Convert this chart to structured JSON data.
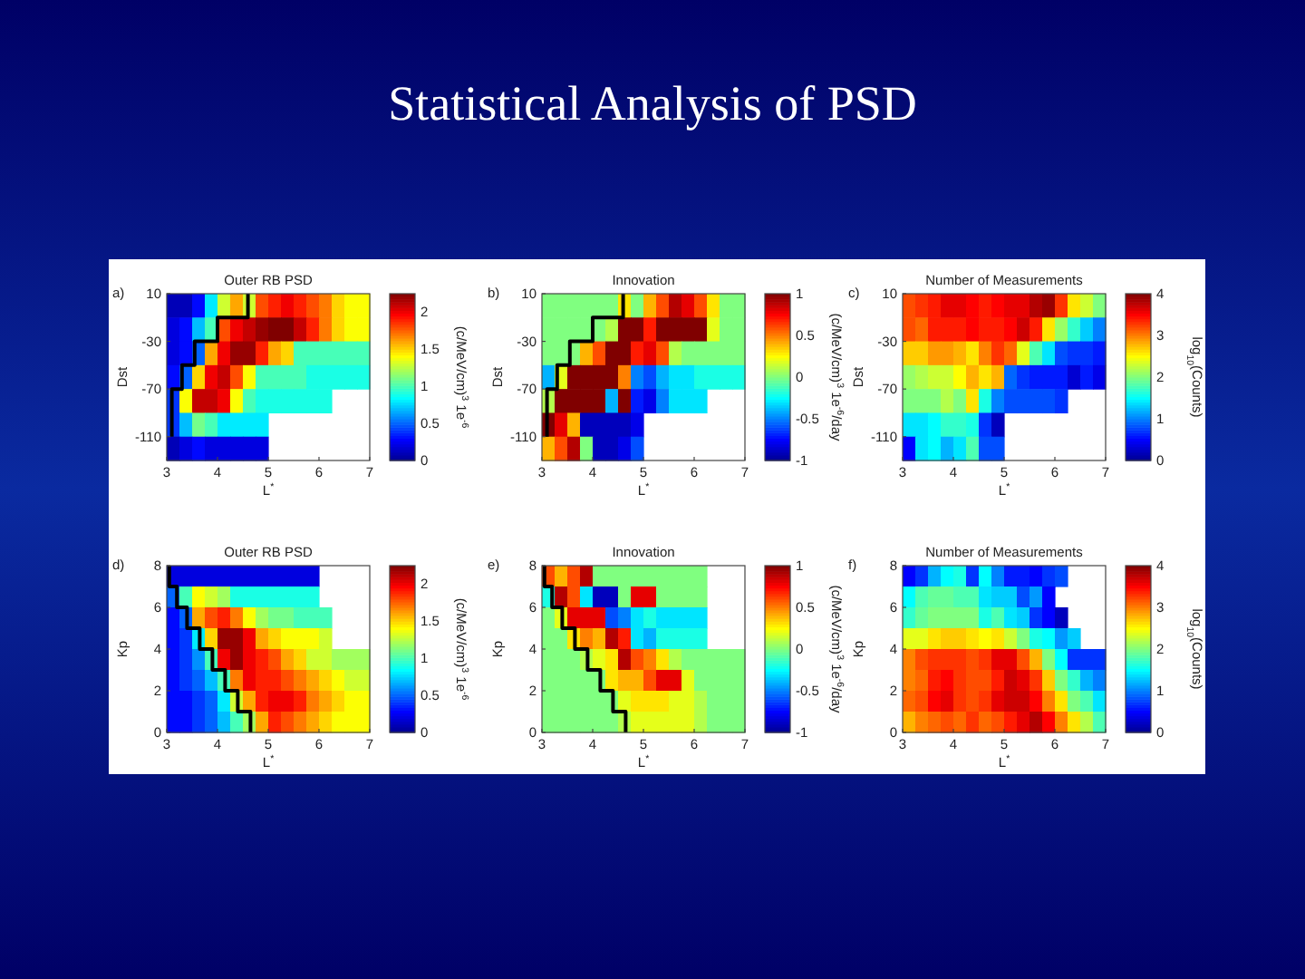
{
  "chart_data": [
    {
      "type": "other",
      "title": "Statistical Analysis of PSD"
    },
    {
      "type": "heatmap",
      "title": "Outer RB PSD",
      "annotations": [
        "a)"
      ],
      "xlabel": "L$^{*}$",
      "ylabel": "Dst",
      "clabel": "(c/MeV/cm)$^{3}$ 1e$^{-6}$",
      "xlim": [
        3,
        7
      ],
      "xticks": [
        3,
        4,
        5,
        6,
        7
      ],
      "ylim": [
        -130,
        10
      ],
      "yticks": [
        10,
        -30,
        -70,
        -110
      ],
      "clim": [
        0,
        2.25
      ],
      "cticks": [
        0,
        0.5,
        1,
        1.5,
        2
      ],
      "cells": [
        [
          0.1,
          0.1,
          0.3,
          0.8,
          1.3,
          1.6,
          1.3,
          1.8,
          1.9,
          2.0,
          1.9,
          1.8,
          1.7,
          1.5,
          1.4,
          1.4
        ],
        [
          0.2,
          0.3,
          0.7,
          1.0,
          1.8,
          2.0,
          2.1,
          2.2,
          2.25,
          2.25,
          2.1,
          1.9,
          1.7,
          1.5,
          1.4,
          1.4
        ],
        [
          0.2,
          0.3,
          0.5,
          1.6,
          2.0,
          2.2,
          2.2,
          1.9,
          1.6,
          1.5,
          1.0,
          1.0,
          1.0,
          1.0,
          1.0,
          1.0
        ],
        [
          0.3,
          0.5,
          1.5,
          2.0,
          2.1,
          1.8,
          1.4,
          1.0,
          1.0,
          1.0,
          1.0,
          0.9,
          0.9,
          0.9,
          0.9,
          0.9
        ],
        [
          0.4,
          1.4,
          2.1,
          2.1,
          2.0,
          1.4,
          1.0,
          0.9,
          0.9,
          0.9,
          0.9,
          0.9,
          0.9,
          null,
          null,
          null
        ],
        [
          0.4,
          0.7,
          1.1,
          1.0,
          0.8,
          0.8,
          0.8,
          0.8,
          null,
          null,
          null,
          null,
          null,
          null,
          null,
          null
        ],
        [
          0.1,
          0.2,
          0.3,
          0.2,
          0.2,
          0.2,
          0.2,
          0.2,
          null,
          null,
          null,
          null,
          null,
          null,
          null,
          null
        ]
      ],
      "series": [
        {
          "type": "line",
          "color": "#000000",
          "x": [
            4.6,
            4.6,
            4.0,
            4.0,
            3.55,
            3.55,
            3.3,
            3.3,
            3.1,
            3.1
          ],
          "values": [
            10,
            -10,
            -10,
            -30,
            -30,
            -50,
            -50,
            -70,
            -70,
            -110
          ]
        }
      ]
    },
    {
      "type": "heatmap",
      "title": "Innovation",
      "annotations": [
        "b)"
      ],
      "xlabel": "L$^{*}$",
      "ylabel": "Dst",
      "clabel": "(c/MeV/cm)$^{3}$ 1e$^{-6}$/day",
      "xlim": [
        3,
        7
      ],
      "xticks": [
        3,
        4,
        5,
        6,
        7
      ],
      "ylim": [
        -130,
        10
      ],
      "yticks": [
        10,
        -30,
        -70,
        -110
      ],
      "clim": [
        -1,
        1
      ],
      "cticks": [
        -1,
        -0.5,
        0,
        0.5,
        1
      ],
      "cells": [
        [
          0,
          0,
          0,
          0,
          0,
          0,
          0.3,
          0,
          0.4,
          0.6,
          0.9,
          0.8,
          0.6,
          0.3,
          0,
          0
        ],
        [
          0,
          0,
          0,
          0,
          0,
          0.1,
          1,
          1,
          0.7,
          1,
          1,
          1,
          1,
          0.2,
          0,
          0
        ],
        [
          0,
          0,
          0,
          0.4,
          0.6,
          1,
          1,
          0.7,
          0.8,
          0.6,
          0.1,
          0,
          0,
          0,
          0,
          0
        ],
        [
          -0.4,
          0.2,
          1,
          1,
          1,
          1,
          0.5,
          -0.5,
          -0.6,
          -0.4,
          -0.3,
          -0.3,
          -0.2,
          -0.2,
          -0.2,
          -0.2
        ],
        [
          0.1,
          1,
          1,
          1,
          1,
          -0.4,
          1,
          -0.7,
          -0.8,
          -0.5,
          -0.3,
          -0.3,
          -0.3,
          null,
          null,
          null
        ],
        [
          1,
          0.8,
          0.4,
          -0.9,
          -0.9,
          -0.9,
          -0.9,
          -0.8,
          null,
          null,
          null,
          null,
          null,
          null,
          null,
          null
        ],
        [
          0.4,
          0.6,
          0.9,
          0,
          -0.9,
          -0.9,
          -0.8,
          -0.6,
          null,
          null,
          null,
          null,
          null,
          null,
          null,
          null
        ]
      ],
      "series": [
        {
          "type": "line",
          "color": "#000000",
          "x": [
            4.6,
            4.6,
            4.0,
            4.0,
            3.55,
            3.55,
            3.3,
            3.3,
            3.1,
            3.1
          ],
          "values": [
            10,
            -10,
            -10,
            -30,
            -30,
            -50,
            -50,
            -70,
            -70,
            -110
          ]
        }
      ]
    },
    {
      "type": "heatmap",
      "title": "Number of Measurements",
      "annotations": [
        "c)"
      ],
      "xlabel": "L$^{*}$",
      "ylabel": "Dst",
      "clabel": "log$_{10}$(Counts)",
      "xlim": [
        3,
        7
      ],
      "xticks": [
        3,
        4,
        5,
        6,
        7
      ],
      "ylim": [
        -130,
        10
      ],
      "yticks": [
        10,
        -30,
        -70,
        -110
      ],
      "clim": [
        0,
        4
      ],
      "cticks": [
        0,
        1,
        2,
        3,
        4
      ],
      "cells": [
        [
          3.2,
          3.3,
          3.4,
          3.6,
          3.6,
          3.5,
          3.4,
          3.5,
          3.6,
          3.6,
          3.8,
          3.9,
          3.3,
          2.6,
          2.3,
          2.0
        ],
        [
          3.2,
          3.1,
          3.4,
          3.4,
          3.4,
          3.5,
          3.4,
          3.4,
          3.5,
          3.7,
          3.4,
          2.6,
          2.1,
          1.7,
          1.3,
          1.0
        ],
        [
          2.7,
          2.7,
          2.9,
          2.9,
          2.8,
          2.6,
          3.0,
          3.3,
          3.1,
          2.4,
          1.8,
          1.4,
          0.8,
          0.7,
          0.7,
          0.6
        ],
        [
          2.1,
          2.2,
          2.3,
          2.3,
          2.5,
          2.8,
          2.6,
          2.8,
          0.9,
          0.7,
          0.6,
          0.6,
          0.6,
          0.3,
          0.6,
          0.4
        ],
        [
          2.0,
          2.0,
          2.0,
          2.2,
          2.0,
          2.6,
          1.6,
          1.0,
          0.8,
          0.8,
          0.8,
          0.8,
          0.7,
          null,
          null,
          null
        ],
        [
          1.4,
          1.4,
          1.5,
          1.7,
          1.7,
          1.6,
          0.7,
          0.2,
          null,
          null,
          null,
          null,
          null,
          null,
          null,
          null
        ],
        [
          0.5,
          1.4,
          1.5,
          1.2,
          1.4,
          1.8,
          0.8,
          0.8,
          null,
          null,
          null,
          null,
          null,
          null,
          null,
          null
        ]
      ]
    },
    {
      "type": "heatmap",
      "title": "Outer RB PSD",
      "annotations": [
        "d)"
      ],
      "xlabel": "L$^{*}$",
      "ylabel": "Kp",
      "clabel": "(c/MeV/cm)$^{3}$ 1e$^{-6}$",
      "xlim": [
        3,
        7
      ],
      "xticks": [
        3,
        4,
        5,
        6,
        7
      ],
      "ylim": [
        0,
        8
      ],
      "yticks": [
        0,
        2,
        4,
        6,
        8
      ],
      "clim": [
        0,
        2.25
      ],
      "cticks": [
        0,
        0.5,
        1,
        1.5,
        2
      ],
      "cells": [
        [
          0.2,
          0.2,
          0.2,
          0.2,
          0.2,
          0.2,
          0.2,
          0.2,
          0.2,
          0.2,
          0.2,
          0.2,
          null,
          null,
          null,
          null
        ],
        [
          0.5,
          1.0,
          1.4,
          1.3,
          1.2,
          0.9,
          0.9,
          0.9,
          0.9,
          0.9,
          0.9,
          0.9,
          null,
          null,
          null,
          null
        ],
        [
          0.3,
          0.5,
          1.6,
          1.8,
          1.9,
          1.7,
          1.4,
          1.2,
          1.1,
          1.1,
          1.0,
          1.0,
          1.0,
          null,
          null,
          null
        ],
        [
          0.3,
          0.4,
          0.8,
          1.5,
          2.2,
          2.2,
          2.0,
          1.6,
          1.5,
          1.4,
          1.4,
          1.4,
          1.3,
          null,
          null,
          null
        ],
        [
          0.3,
          0.4,
          0.6,
          1.0,
          2.0,
          2.2,
          2.0,
          1.9,
          1.8,
          1.6,
          1.5,
          1.3,
          1.3,
          1.2,
          1.2,
          1.2
        ],
        [
          0.3,
          0.4,
          0.5,
          0.7,
          1.0,
          1.7,
          2.0,
          1.9,
          1.9,
          1.8,
          1.7,
          1.6,
          1.5,
          1.4,
          1.3,
          1.3
        ],
        [
          0.3,
          0.3,
          0.4,
          0.5,
          0.8,
          1.3,
          1.6,
          1.9,
          2.0,
          2.0,
          1.9,
          1.7,
          1.6,
          1.5,
          1.4,
          1.4
        ],
        [
          0.3,
          0.3,
          0.4,
          0.5,
          0.7,
          1.0,
          1.2,
          1.6,
          1.9,
          1.8,
          1.7,
          1.6,
          1.5,
          1.4,
          1.4,
          1.4
        ]
      ],
      "series": [
        {
          "type": "line",
          "color": "#000000",
          "x": [
            3.05,
            3.05,
            3.2,
            3.2,
            3.4,
            3.4,
            3.65,
            3.65,
            3.9,
            3.9,
            4.15,
            4.15,
            4.4,
            4.4,
            4.65,
            4.65
          ],
          "values": [
            8,
            7,
            7,
            6,
            6,
            5,
            5,
            4,
            4,
            3,
            3,
            2,
            2,
            1,
            1,
            0
          ]
        }
      ]
    },
    {
      "type": "heatmap",
      "title": "Innovation",
      "annotations": [
        "e)"
      ],
      "xlabel": "L$^{*}$",
      "ylabel": "Kp",
      "clabel": "(c/MeV/cm)$^{3}$ 1e$^{-6}$/day",
      "xlim": [
        3,
        7
      ],
      "xticks": [
        3,
        4,
        5,
        6,
        7
      ],
      "ylim": [
        0,
        8
      ],
      "yticks": [
        0,
        2,
        4,
        6,
        8
      ],
      "clim": [
        -1,
        1
      ],
      "cticks": [
        -1,
        -0.5,
        0,
        0.5,
        1
      ],
      "cells": [
        [
          0.6,
          0.4,
          0.6,
          0.9,
          0,
          0,
          0,
          0,
          0,
          0,
          0,
          0,
          0,
          null,
          null,
          null
        ],
        [
          -0.2,
          0.9,
          0.6,
          -0.3,
          -0.9,
          -0.9,
          0,
          0.8,
          0.8,
          0,
          0,
          0,
          0,
          null,
          null,
          null
        ],
        [
          0,
          0.2,
          0.8,
          0.8,
          0.8,
          -0.6,
          -0.5,
          -0.3,
          -0.2,
          -0.3,
          -0.3,
          -0.3,
          -0.3,
          null,
          null,
          null
        ],
        [
          0,
          0,
          0.3,
          0.5,
          0.4,
          0.9,
          0.7,
          -0.3,
          -0.4,
          -0.2,
          -0.2,
          -0.2,
          -0.2,
          null,
          null,
          null
        ],
        [
          0,
          0,
          0,
          0.1,
          0.2,
          0.3,
          0.9,
          0.6,
          0.5,
          0.3,
          0.1,
          0,
          0,
          0,
          0,
          0
        ],
        [
          0,
          0,
          0,
          0,
          0,
          0.3,
          0.4,
          0.4,
          0.6,
          0.8,
          0.8,
          0.2,
          0,
          0,
          0,
          0
        ],
        [
          0,
          0,
          0,
          0,
          0,
          0,
          0.2,
          0.3,
          0.3,
          0.3,
          0.2,
          0.2,
          0.1,
          0,
          0,
          0
        ],
        [
          0,
          0,
          0,
          0,
          0,
          0,
          0.1,
          0.2,
          0.2,
          0.2,
          0.2,
          0.2,
          0.1,
          0,
          0,
          0
        ]
      ],
      "series": [
        {
          "type": "line",
          "color": "#000000",
          "x": [
            3.05,
            3.05,
            3.2,
            3.2,
            3.4,
            3.4,
            3.65,
            3.65,
            3.9,
            3.9,
            4.15,
            4.15,
            4.4,
            4.4,
            4.65,
            4.65
          ],
          "values": [
            8,
            7,
            7,
            6,
            6,
            5,
            5,
            4,
            4,
            3,
            3,
            2,
            2,
            1,
            1,
            0
          ]
        }
      ]
    },
    {
      "type": "heatmap",
      "title": "Number of Measurements",
      "annotations": [
        "f)"
      ],
      "xlabel": "L$^{*}$",
      "ylabel": "Kp",
      "clabel": "log$_{10}$(Counts)",
      "xlim": [
        3,
        7
      ],
      "xticks": [
        3,
        4,
        5,
        6,
        7
      ],
      "ylim": [
        0,
        8
      ],
      "yticks": [
        0,
        2,
        4,
        6,
        8
      ],
      "clim": [
        0,
        4
      ],
      "cticks": [
        0,
        1,
        2,
        3,
        4
      ],
      "cells": [
        [
          0.5,
          0.7,
          1.2,
          1.5,
          1.6,
          0.7,
          1.5,
          1.0,
          0.6,
          0.6,
          0.5,
          0.7,
          0.8,
          null,
          null,
          null
        ],
        [
          1.5,
          1.8,
          1.9,
          1.9,
          1.8,
          1.8,
          1.4,
          1.3,
          1.3,
          0.8,
          1.1,
          0.5,
          null,
          null,
          null,
          null
        ],
        [
          1.7,
          1.9,
          2.0,
          2.0,
          2.0,
          2.0,
          1.6,
          1.8,
          1.4,
          1.3,
          0.7,
          0.5,
          0.2,
          null,
          null,
          null
        ],
        [
          2.4,
          2.4,
          2.6,
          2.7,
          2.7,
          2.6,
          2.5,
          2.6,
          2.3,
          2.0,
          1.6,
          1.5,
          1.1,
          1.3,
          null,
          null
        ],
        [
          3.0,
          3.2,
          3.3,
          3.3,
          3.3,
          3.2,
          3.3,
          3.6,
          3.6,
          3.2,
          2.8,
          2.0,
          1.5,
          0.7,
          0.7,
          0.7
        ],
        [
          3.0,
          3.1,
          3.4,
          3.5,
          3.3,
          3.2,
          3.2,
          3.4,
          3.7,
          3.6,
          3.3,
          2.7,
          2.0,
          1.7,
          1.2,
          1.0
        ],
        [
          3.1,
          3.2,
          3.5,
          3.6,
          3.3,
          3.2,
          3.3,
          3.6,
          3.7,
          3.7,
          3.5,
          3.0,
          2.6,
          2.0,
          1.8,
          1.4
        ],
        [
          2.8,
          3.0,
          3.1,
          3.2,
          3.1,
          3.3,
          3.1,
          3.2,
          3.4,
          3.6,
          3.8,
          3.5,
          3.0,
          2.6,
          2.2,
          1.8
        ]
      ]
    }
  ]
}
